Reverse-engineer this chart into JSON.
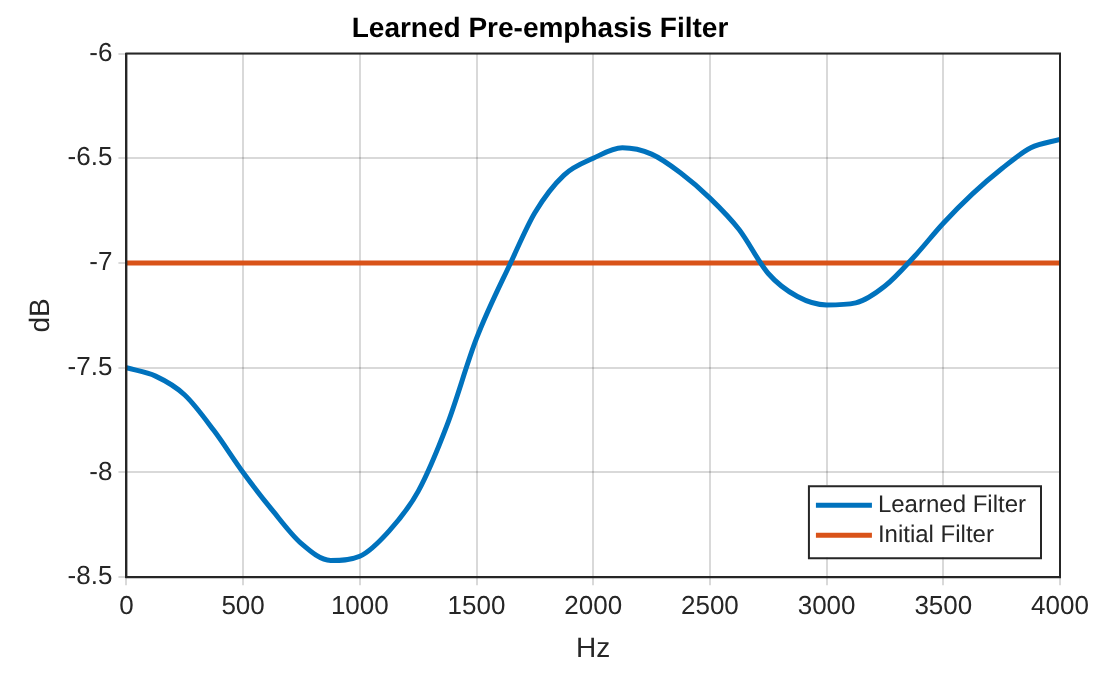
{
  "chart_data": {
    "type": "line",
    "title": "Learned Pre-emphasis Filter",
    "xlabel": "Hz",
    "ylabel": "dB",
    "xlim": [
      0,
      4000
    ],
    "xticks": [
      0,
      500,
      1000,
      1500,
      2000,
      2500,
      3000,
      3500,
      4000
    ],
    "ylim": [
      -8.5,
      -6
    ],
    "yticks": [
      -8.5,
      -8,
      -7.5,
      -7,
      -6.5,
      -6
    ],
    "grid": true,
    "legend": "bottom right",
    "marker": "none",
    "line_style": "solid",
    "series": [
      {
        "name": "Learned Filter",
        "color": "#0072bd",
        "x": [
          0,
          125,
          250,
          375,
          500,
          625,
          750,
          875,
          1000,
          1125,
          1250,
          1375,
          1500,
          1650,
          1750,
          1875,
          2000,
          2125,
          2250,
          2375,
          2500,
          2625,
          2750,
          2875,
          3000,
          3125,
          3250,
          3375,
          3500,
          3625,
          3750,
          3875,
          4000
        ],
        "values": [
          -7.5,
          -7.54,
          -7.63,
          -7.8,
          -8.0,
          -8.18,
          -8.34,
          -8.42,
          -8.4,
          -8.28,
          -8.09,
          -7.77,
          -7.36,
          -6.99,
          -6.76,
          -6.58,
          -6.5,
          -6.45,
          -6.48,
          -6.57,
          -6.69,
          -6.84,
          -7.05,
          -7.16,
          -7.2,
          -7.19,
          -7.11,
          -6.97,
          -6.81,
          -6.67,
          -6.55,
          -6.45,
          -6.41
        ]
      },
      {
        "name": "Initial Filter",
        "color": "#d95319",
        "x": [
          0,
          4000
        ],
        "values": [
          -7,
          -7
        ]
      }
    ]
  }
}
